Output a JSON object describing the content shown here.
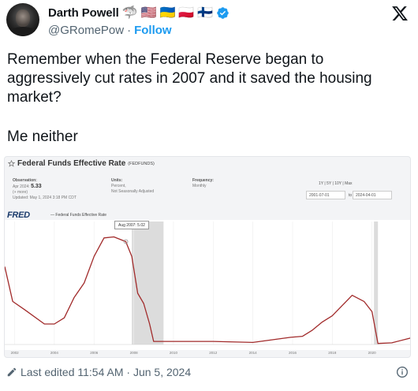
{
  "author": {
    "display_name": "Darth Powell",
    "badges": [
      "🦈",
      "🇺🇸",
      "🇺🇦",
      "🇵🇱",
      "🇫🇮"
    ],
    "handle": "@GRomePow",
    "separator": "·",
    "follow_label": "Follow"
  },
  "tweet": {
    "paragraph1": "Remember when the Federal Reserve began to aggressively cut rates in 2007 and it saved the housing market?",
    "paragraph2": "Me neither"
  },
  "fred": {
    "title": "Federal Funds Effective Rate",
    "series_id": "(FEDFUNDS)",
    "observation_label": "Observation:",
    "observation_date": "Apr 2024:",
    "observation_value": "5.33",
    "more": "(+ more)",
    "updated": "Updated: May 1, 2024 3:18 PM CDT",
    "units_label": "Units:",
    "units_1": "Percent,",
    "units_2": "Not Seasonally Adjusted",
    "frequency_label": "Frequency:",
    "frequency": "Monthly",
    "range_links": "1Y | 5Y | 10Y | Max",
    "date_from": "2001-07-01",
    "date_to_word": "to",
    "date_to": "2024-04-01",
    "logo": "FRED",
    "legend": "— Federal Funds Effective Rate",
    "tooltip": "Aug 2007: 5.02"
  },
  "chart_data": {
    "type": "line",
    "title": "Federal Funds Effective Rate",
    "series": [
      {
        "name": "Federal Funds Effective Rate",
        "x": [
          2001.5,
          2001.9,
          2002.5,
          2003.5,
          2004.0,
          2004.5,
          2005.0,
          2005.5,
          2006.0,
          2006.5,
          2007.0,
          2007.6,
          2007.9,
          2008.2,
          2008.5,
          2008.8,
          2009.0,
          2010.0,
          2012.0,
          2014.0,
          2015.9,
          2016.5,
          2017.0,
          2017.5,
          2018.0,
          2018.5,
          2019.0,
          2019.6,
          2020.0,
          2020.3,
          2021.0,
          2022.0
        ],
        "values": [
          3.8,
          2.1,
          1.7,
          1.0,
          1.0,
          1.3,
          2.3,
          3.0,
          4.3,
          5.2,
          5.25,
          5.02,
          4.3,
          2.5,
          2.0,
          1.0,
          0.15,
          0.15,
          0.15,
          0.1,
          0.35,
          0.4,
          0.7,
          1.1,
          1.4,
          1.9,
          2.4,
          2.1,
          1.6,
          0.05,
          0.08,
          0.33
        ]
      }
    ],
    "x_ticks": [
      "2002",
      "2004",
      "2006",
      "2008",
      "2010",
      "2012",
      "2014",
      "2016",
      "2018",
      "2020"
    ],
    "xlim": [
      2001.5,
      2022.0
    ],
    "ylim": [
      0,
      6
    ],
    "recessions": [
      [
        2007.9,
        2009.5
      ],
      [
        2020.1,
        2020.3
      ]
    ],
    "color": "#a12a2a"
  },
  "footer": {
    "edited": "Last edited 11:54 AM · Jun 5, 2024"
  }
}
